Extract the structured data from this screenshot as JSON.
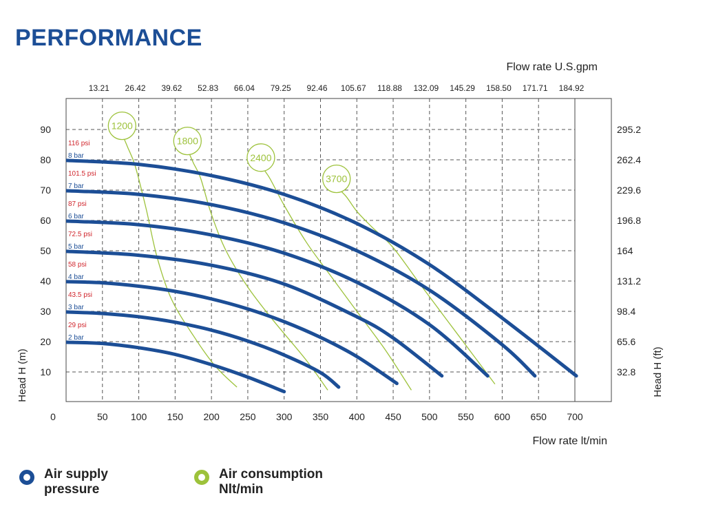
{
  "page": {
    "title": "PERFORMANCE"
  },
  "legend": {
    "air_supply": "Air supply\npressure",
    "air_consumption": "Air consumption\nNlt/min",
    "air_supply_color": "#1c4e96",
    "air_consumption_color": "#9dc23b"
  },
  "chart_data": {
    "type": "line",
    "title": "PERFORMANCE",
    "xlabel": "Flow rate  lt/min",
    "x2label": "Flow rate U.S.gpm",
    "ylabel": "Head H (m)",
    "y2label": "Head H (ft)",
    "xlim": [
      0,
      750
    ],
    "ylim": [
      0,
      100
    ],
    "x_ticks": [
      "0",
      "50",
      "100",
      "150",
      "200",
      "250",
      "300",
      "350",
      "400",
      "450",
      "500",
      "550",
      "600",
      "650",
      "700"
    ],
    "x2_ticks": [
      "13.21",
      "26.42",
      "39.62",
      "52.83",
      "66.04",
      "79.25",
      "92.46",
      "105.67",
      "118.88",
      "132.09",
      "145.29",
      "158.50",
      "171.71",
      "184.92"
    ],
    "y_ticks": [
      "10",
      "20",
      "30",
      "40",
      "50",
      "60",
      "70",
      "80",
      "90"
    ],
    "y2_ticks": [
      "32.8",
      "65.6",
      "98.4",
      "131.2",
      "164",
      "196.8",
      "229.6",
      "262.4",
      "295.2"
    ],
    "grid": true,
    "series": [
      {
        "name": "2 bar",
        "psi": "29 psi",
        "color": "#1c4e96",
        "x": [
          0,
          50,
          100,
          150,
          200,
          250,
          300
        ],
        "y": [
          19.8,
          19.4,
          18.0,
          15.8,
          12.4,
          8.3,
          3.5
        ]
      },
      {
        "name": "3 bar",
        "psi": "43.5 psi",
        "color": "#1c4e96",
        "x": [
          0,
          50,
          100,
          150,
          200,
          250,
          300,
          350,
          375
        ],
        "y": [
          29.8,
          29.3,
          28.2,
          26.4,
          23.8,
          20.2,
          15.6,
          9.8,
          5.0
        ]
      },
      {
        "name": "4 bar",
        "psi": "58 psi",
        "color": "#1c4e96",
        "x": [
          0,
          50,
          100,
          150,
          200,
          250,
          300,
          350,
          400,
          455
        ],
        "y": [
          39.8,
          39.4,
          38.3,
          36.6,
          34.1,
          30.8,
          26.6,
          21.4,
          15.1,
          6.2
        ]
      },
      {
        "name": "5 bar",
        "psi": "72.5 psi",
        "color": "#1c4e96",
        "x": [
          0,
          100,
          200,
          300,
          400,
          450,
          517
        ],
        "y": [
          49.8,
          48.5,
          45.2,
          39.0,
          28.2,
          21.2,
          8.7
        ]
      },
      {
        "name": "6 bar",
        "psi": "87 psi",
        "color": "#1c4e96",
        "x": [
          0,
          100,
          200,
          300,
          400,
          500,
          580
        ],
        "y": [
          59.8,
          58.6,
          55.2,
          49.2,
          39.6,
          25.6,
          8.7
        ]
      },
      {
        "name": "7 bar",
        "psi": "101.5 psi",
        "color": "#1c4e96",
        "x": [
          0,
          100,
          200,
          300,
          400,
          500,
          600,
          645
        ],
        "y": [
          69.8,
          68.6,
          65.2,
          59.2,
          50.0,
          37.0,
          19.0,
          8.7
        ]
      },
      {
        "name": "8 bar",
        "psi": "116 psi",
        "color": "#1c4e96",
        "x": [
          0,
          100,
          200,
          300,
          400,
          500,
          600,
          702
        ],
        "y": [
          79.8,
          78.5,
          74.8,
          68.6,
          59.0,
          45.4,
          27.8,
          8.7
        ]
      }
    ],
    "consumption": [
      {
        "label": "1200",
        "color": "#9dc23b",
        "x": [
          77,
          85,
          95,
          110,
          125,
          145,
          175,
          205,
          235
        ],
        "y": [
          88.5,
          84,
          78,
          64,
          48,
          34,
          22,
          12,
          5
        ]
      },
      {
        "label": "1800",
        "color": "#9dc23b",
        "x": [
          167,
          175,
          185,
          200,
          220,
          250,
          285,
          330,
          360
        ],
        "y": [
          83.5,
          79,
          74,
          62,
          50,
          38,
          27,
          14,
          4
        ]
      },
      {
        "label": "2400",
        "color": "#9dc23b",
        "x": [
          268,
          280,
          300,
          330,
          360,
          400,
          440,
          475
        ],
        "y": [
          78,
          74,
          65,
          53,
          43,
          30,
          17,
          4
        ]
      },
      {
        "label": "3700",
        "color": "#9dc23b",
        "x": [
          372,
          385,
          400,
          420,
          450,
          490,
          540,
          590
        ],
        "y": [
          71,
          68,
          63,
          58,
          51,
          38,
          22,
          6
        ]
      }
    ]
  }
}
